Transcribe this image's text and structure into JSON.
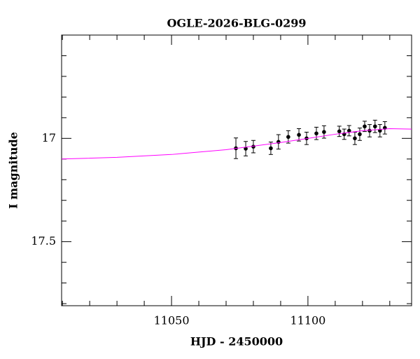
{
  "chart_data": {
    "type": "scatter",
    "title": "OGLE-2026-BLG-0299",
    "xlabel": "HJD - 2450000",
    "ylabel": "I magnitude",
    "xlim": [
      11009.7,
      11138
    ],
    "ylim": [
      16.5,
      17.81
    ],
    "y_inverted": true,
    "xticks": [
      11050,
      11100
    ],
    "xticks_minor": [
      11010,
      11020,
      11030,
      11040,
      11060,
      11070,
      11080,
      11090,
      11110,
      11120,
      11130
    ],
    "yticks": [
      17,
      17.5
    ],
    "yticks_minor": [
      16.6,
      16.7,
      16.8,
      16.9,
      17.1,
      17.2,
      17.3,
      17.4,
      17.6,
      17.7,
      17.8
    ],
    "series": [
      {
        "color": "#000000",
        "x": [
          11073.6,
          11077.2,
          11080.0,
          11086.4,
          11089.2,
          11092.8,
          11096.7,
          11099.5,
          11103.1,
          11105.9,
          11111.5,
          11113.3,
          11115.1,
          11117.2,
          11119.0,
          11120.8,
          11122.6,
          11124.6,
          11126.4,
          11128.2
        ],
        "values": [
          17.048,
          17.05,
          17.04,
          17.048,
          17.017,
          16.993,
          16.983,
          17.0,
          16.976,
          16.969,
          16.966,
          16.98,
          16.963,
          17.0,
          16.98,
          16.942,
          16.963,
          16.942,
          16.963,
          16.949
        ],
        "errors": [
          0.05,
          0.035,
          0.03,
          0.03,
          0.035,
          0.03,
          0.03,
          0.03,
          0.03,
          0.03,
          0.025,
          0.025,
          0.025,
          0.03,
          0.03,
          0.025,
          0.03,
          0.03,
          0.03,
          0.03
        ]
      },
      {
        "type": "line",
        "color": "#ff00ff",
        "x": [
          11009.7,
          11030,
          11050,
          11070,
          11090,
          11100,
          11110,
          11120,
          11130,
          11138
        ],
        "values": [
          17.1,
          17.092,
          17.078,
          17.055,
          17.02,
          17.0,
          16.98,
          16.963,
          16.953,
          16.955
        ]
      }
    ]
  }
}
